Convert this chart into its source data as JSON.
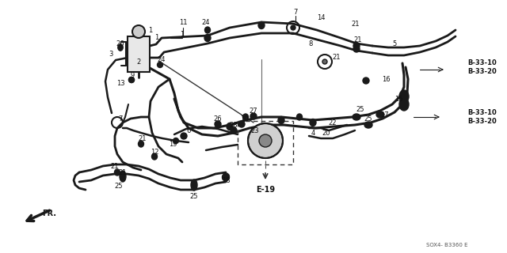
{
  "bg_color": "#ffffff",
  "fig_width": 6.4,
  "fig_height": 3.2,
  "dpi": 100,
  "line_color": "#1a1a1a",
  "text_color": "#111111",
  "b3310_b3320": "B-33-10\nB-33-20",
  "e19": "E-19",
  "fr": "FR.",
  "partnum": "SOX4- B3360 E"
}
